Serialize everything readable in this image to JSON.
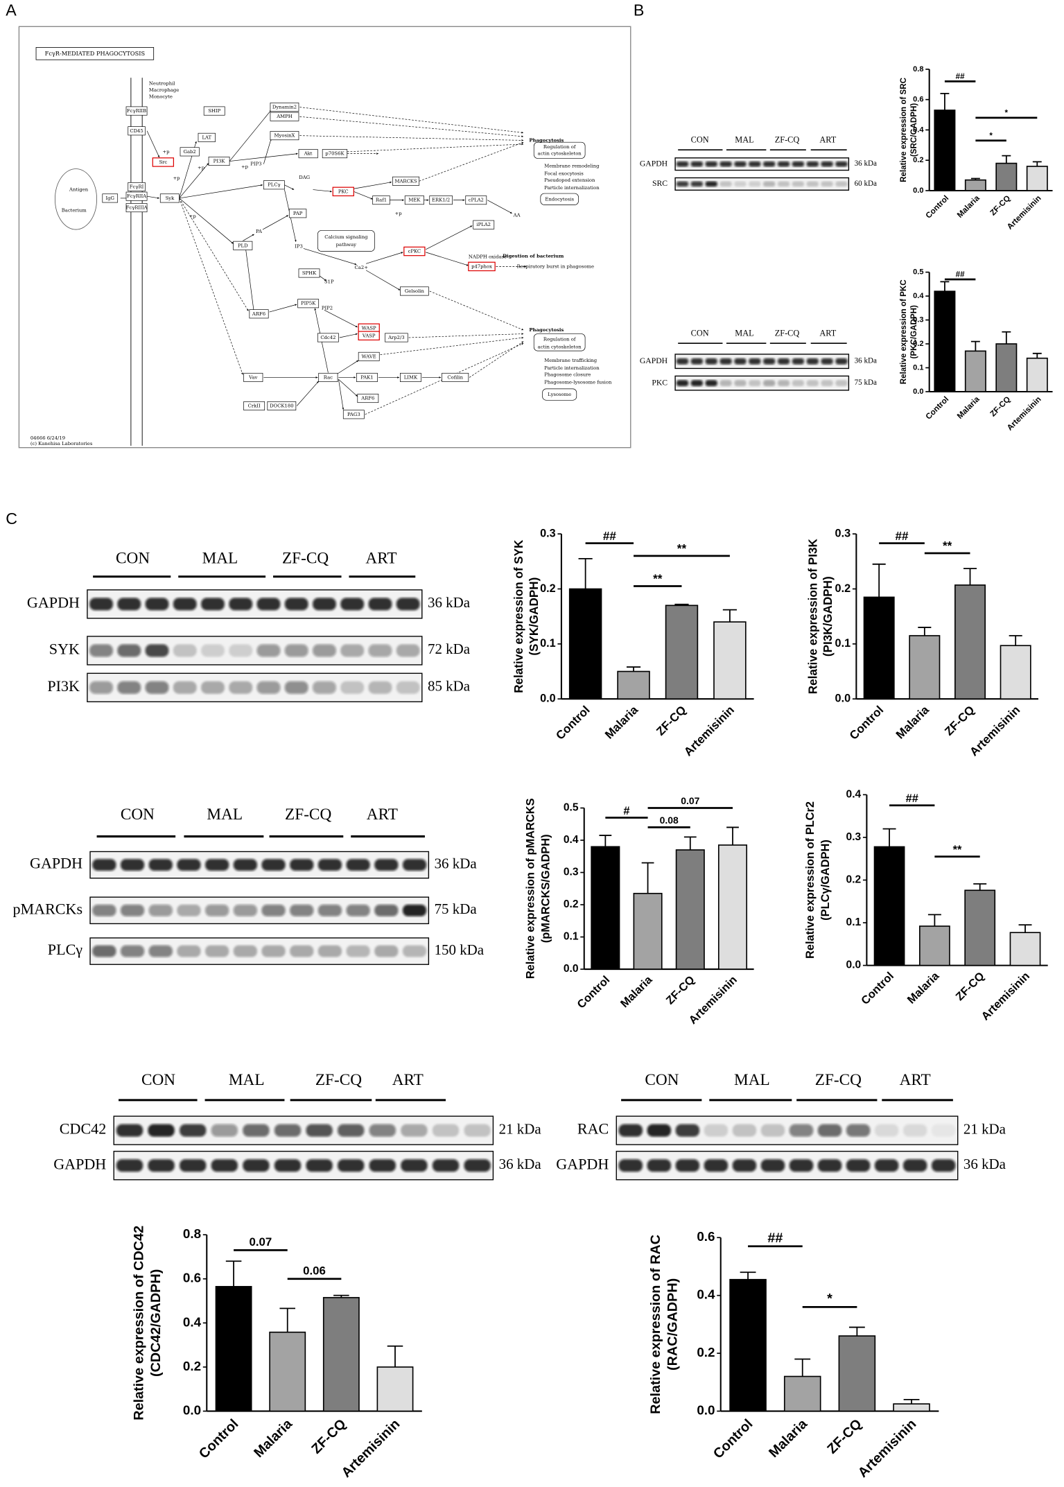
{
  "panels": [
    "A",
    "B",
    "C"
  ],
  "pathway": {
    "title": "FcγR-MEDIATED PHAGOCYTOSIS",
    "nodes": [
      "Neutrophil",
      "Macrophage",
      "Monocyte",
      "FcγRIIB",
      "CD45",
      "FcγRI",
      "FcγRIIA",
      "FcγRIIIA",
      "Antigen",
      "Bacterium",
      "IgG",
      "Src",
      "SHIP",
      "LAT",
      "Gab2",
      "PI3K",
      "Syk",
      "PIP3",
      "Dynamin2",
      "AMPH",
      "MyosinX",
      "Akt",
      "p70S6K",
      "PLCγ",
      "DAG",
      "PKC",
      "MARCKS",
      "Raf1",
      "MEK",
      "ERK1/2",
      "cPLA2",
      "AA",
      "PAP",
      "PA",
      "PLD",
      "IP3",
      "Calcium signaling",
      "pathway",
      "cPKC",
      "Ca2+",
      "iPLA2",
      "SPHK",
      "S1P",
      "Gelsolin",
      "ARF6",
      "PIP5K",
      "PIP2",
      "Cdc42",
      "WASP",
      "VASP",
      "Arp2/3",
      "WAVE",
      "Vav",
      "Rac",
      "PAK1",
      "LIMK",
      "Cofilin",
      "CrkII",
      "DOCK180",
      "PAG3",
      "ARF6",
      "NADPH oxidase",
      "p47phox",
      "Phagocytosis",
      "Regulation of",
      "actin cytoskeleton",
      "Membrane remodeling",
      "Focal exocytosis",
      "Pseudopod extension",
      "Particle internalization",
      "Endocytosis",
      "Digestion of bacterium",
      "Respiratory burst in phagosome",
      "Phagocytosis",
      "Regulation of",
      "actin cytoskeleton",
      "Membrane trafficking",
      "Particle internalization",
      "Phagosome closure",
      "Phagosome-lysosome fusion",
      "Lysosome",
      "04666 6/24/19",
      "(c) Kanehisa Laboratories",
      "+p",
      "+p",
      "+p",
      "+p",
      "+p",
      "+p"
    ]
  },
  "blots": [
    {
      "groups": [
        "CON",
        "MAL",
        "ZF-CQ",
        "ART"
      ],
      "rows": [
        {
          "name": "GAPDH",
          "size": "36 kDa"
        },
        {
          "name": "SRC",
          "size": "60 kDa"
        }
      ]
    },
    {
      "groups": [
        "CON",
        "MAL",
        "ZF-CQ",
        "ART"
      ],
      "rows": [
        {
          "name": "GAPDH",
          "size": "36 kDa"
        },
        {
          "name": "PKC",
          "size": "75 kDa"
        }
      ]
    },
    {
      "groups": [
        "CON",
        "MAL",
        "ZF-CQ",
        "ART"
      ],
      "rows": [
        {
          "name": "GAPDH",
          "size": "36 kDa"
        },
        {
          "name": "SYK",
          "size": "72 kDa"
        },
        {
          "name": "PI3K",
          "size": "85 kDa"
        }
      ]
    },
    {
      "groups": [
        "CON",
        "MAL",
        "ZF-CQ",
        "ART"
      ],
      "rows": [
        {
          "name": "GAPDH",
          "size": "36 kDa"
        },
        {
          "name": "pMARCKs",
          "size": "75 kDa"
        },
        {
          "name": "PLCγ",
          "size": "150 kDa"
        }
      ]
    },
    {
      "groups": [
        "CON",
        "MAL",
        "ZF-CQ",
        "ART"
      ],
      "rows": [
        {
          "name": "CDC42",
          "size": "21 kDa"
        },
        {
          "name": "GAPDH",
          "size": "36 kDa"
        }
      ]
    },
    {
      "groups": [
        "CON",
        "MAL",
        "ZF-CQ",
        "ART"
      ],
      "rows": [
        {
          "name": "RAC",
          "size": "21 kDa"
        },
        {
          "name": "GAPDH",
          "size": "36 kDa"
        }
      ]
    }
  ],
  "chart_data": [
    {
      "type": "bar",
      "ylabel": [
        "Relative expression of SRC",
        "(SRC/GADPH)"
      ],
      "categories": [
        "Control",
        "Malaria",
        "ZF-CQ",
        "Artemisinin"
      ],
      "values": [
        0.53,
        0.07,
        0.18,
        0.16
      ],
      "errors": [
        0.11,
        0.01,
        0.05,
        0.03
      ],
      "colors": [
        "#000000",
        "#a3a3a3",
        "#7e7e7e",
        "#dedede"
      ],
      "ylim": [
        0,
        0.8
      ],
      "yticks": [
        {
          "value": 0,
          "label": "0.0"
        },
        0.2,
        0.4,
        0.6,
        0.8
      ],
      "annotations": [
        {
          "label": "##",
          "x": [
            0,
            1
          ],
          "y": 0.72
        },
        {
          "label": "*",
          "x": [
            1,
            3
          ],
          "y": 0.48
        },
        {
          "label": "*",
          "x": [
            1,
            2
          ],
          "y": 0.33
        }
      ]
    },
    {
      "type": "bar",
      "ylabel": [
        "Relative expression of PKC",
        "(PKC/GADPH)"
      ],
      "categories": [
        "Control",
        "Malaria",
        "ZF-CQ",
        "Artemisinin"
      ],
      "values": [
        0.42,
        0.17,
        0.2,
        0.14
      ],
      "errors": [
        0.04,
        0.04,
        0.05,
        0.02
      ],
      "colors": [
        "#000000",
        "#a3a3a3",
        "#7e7e7e",
        "#dedede"
      ],
      "ylim": [
        0,
        0.5
      ],
      "yticks": [
        {
          "value": 0,
          "label": "0.0"
        },
        0.1,
        0.2,
        0.3,
        0.4,
        0.5
      ],
      "annotations": [
        {
          "label": "##",
          "x": [
            0,
            1
          ],
          "y": 0.47
        }
      ]
    },
    {
      "type": "bar",
      "ylabel": [
        "Relative expression of SYK",
        "(SYK/GADPH)"
      ],
      "categories": [
        "Control",
        "Malaria",
        "ZF-CQ",
        "Artemisinin"
      ],
      "values": [
        0.2,
        0.05,
        0.17,
        0.14
      ],
      "errors": [
        0.055,
        0.008,
        0.002,
        0.022
      ],
      "colors": [
        "#000000",
        "#a3a3a3",
        "#7e7e7e",
        "#dedede"
      ],
      "ylim": [
        0,
        0.3
      ],
      "yticks": [
        {
          "value": 0,
          "label": "0.0"
        },
        0.1,
        0.2,
        0.3
      ],
      "annotations": [
        {
          "label": "##",
          "x": [
            0,
            1
          ],
          "y": 0.283
        },
        {
          "label": "**",
          "x": [
            1,
            3
          ],
          "y": 0.26
        },
        {
          "label": "**",
          "x": [
            1,
            2
          ],
          "y": 0.205
        }
      ]
    },
    {
      "type": "bar",
      "ylabel": [
        "Relative expression of PI3K",
        "(PI3K/GADPH)"
      ],
      "categories": [
        "Control",
        "Malaria",
        "ZF-CQ",
        "Artemisinin"
      ],
      "values": [
        0.185,
        0.115,
        0.207,
        0.097
      ],
      "errors": [
        0.06,
        0.015,
        0.03,
        0.018
      ],
      "colors": [
        "#000000",
        "#a3a3a3",
        "#7e7e7e",
        "#dedede"
      ],
      "ylim": [
        0,
        0.3
      ],
      "yticks": [
        {
          "value": 0,
          "label": "0.0"
        },
        0.1,
        0.2,
        0.3
      ],
      "annotations": [
        {
          "label": "##",
          "x": [
            0,
            1
          ],
          "y": 0.283
        },
        {
          "label": "**",
          "x": [
            1,
            2
          ],
          "y": 0.265
        }
      ]
    },
    {
      "type": "bar",
      "ylabel": [
        "Relative expression of pMARCKS",
        "(pMARCKS/GADPH)"
      ],
      "categories": [
        "Control",
        "Malaria",
        "ZF-CQ",
        "Artemisinin"
      ],
      "values": [
        0.38,
        0.235,
        0.37,
        0.385
      ],
      "errors": [
        0.035,
        0.095,
        0.04,
        0.055
      ],
      "colors": [
        "#000000",
        "#a3a3a3",
        "#7e7e7e",
        "#dedede"
      ],
      "ylim": [
        0,
        0.5
      ],
      "yticks": [
        {
          "value": 0,
          "label": "0.0"
        },
        0.1,
        0.2,
        0.3,
        0.4,
        0.5
      ],
      "annotations": [
        {
          "label": "#",
          "x": [
            0,
            1
          ],
          "y": 0.47
        },
        {
          "label": "0.07",
          "x": [
            1,
            3
          ],
          "y": 0.5
        },
        {
          "label": "0.08",
          "x": [
            1,
            2
          ],
          "y": 0.44
        }
      ]
    },
    {
      "type": "bar",
      "ylabel": [
        "Relative expression of PLCr2",
        "(PLCγ/GADPH)"
      ],
      "categories": [
        "Control",
        "Malaria",
        "ZF-CQ",
        "Artemisinin"
      ],
      "values": [
        0.278,
        0.092,
        0.176,
        0.077
      ],
      "errors": [
        0.042,
        0.027,
        0.015,
        0.018
      ],
      "colors": [
        "#000000",
        "#a3a3a3",
        "#7e7e7e",
        "#dedede"
      ],
      "ylim": [
        0,
        0.4
      ],
      "yticks": [
        {
          "value": 0,
          "label": "0.0"
        },
        0.1,
        0.2,
        0.3,
        0.4
      ],
      "annotations": [
        {
          "label": "##",
          "x": [
            0,
            1
          ],
          "y": 0.375
        },
        {
          "label": "**",
          "x": [
            1,
            2
          ],
          "y": 0.255
        }
      ]
    },
    {
      "type": "bar",
      "ylabel": [
        "Relative expression of CDC42",
        "(CDC42/GADPH)"
      ],
      "categories": [
        "Control",
        "Malaria",
        "ZF-CQ",
        "Artemisinin"
      ],
      "values": [
        0.565,
        0.358,
        0.515,
        0.2
      ],
      "errors": [
        0.115,
        0.108,
        0.01,
        0.095
      ],
      "colors": [
        "#000000",
        "#a3a3a3",
        "#7e7e7e",
        "#dedede"
      ],
      "ylim": [
        0,
        0.8
      ],
      "yticks": [
        {
          "value": 0,
          "label": "0.0"
        },
        0.2,
        0.4,
        0.6,
        0.8
      ],
      "annotations": [
        {
          "label": "0.07",
          "x": [
            0,
            1
          ],
          "y": 0.73
        },
        {
          "label": "0.06",
          "x": [
            1,
            2
          ],
          "y": 0.6
        }
      ]
    },
    {
      "type": "bar",
      "ylabel": [
        "Relative expression of RAC",
        "(RAC/GADPH)"
      ],
      "categories": [
        "Control",
        "Malaria",
        "ZF-CQ",
        "Artemisinin"
      ],
      "values": [
        0.455,
        0.12,
        0.26,
        0.025
      ],
      "errors": [
        0.025,
        0.06,
        0.03,
        0.015
      ],
      "colors": [
        "#000000",
        "#a3a3a3",
        "#7e7e7e",
        "#dedede"
      ],
      "ylim": [
        0,
        0.6
      ],
      "yticks": [
        {
          "value": 0,
          "label": "0.0"
        },
        0.2,
        0.4,
        0.6
      ],
      "annotations": [
        {
          "label": "##",
          "x": [
            0,
            1
          ],
          "y": 0.57
        },
        {
          "label": "*",
          "x": [
            1,
            2
          ],
          "y": 0.36
        }
      ]
    }
  ]
}
